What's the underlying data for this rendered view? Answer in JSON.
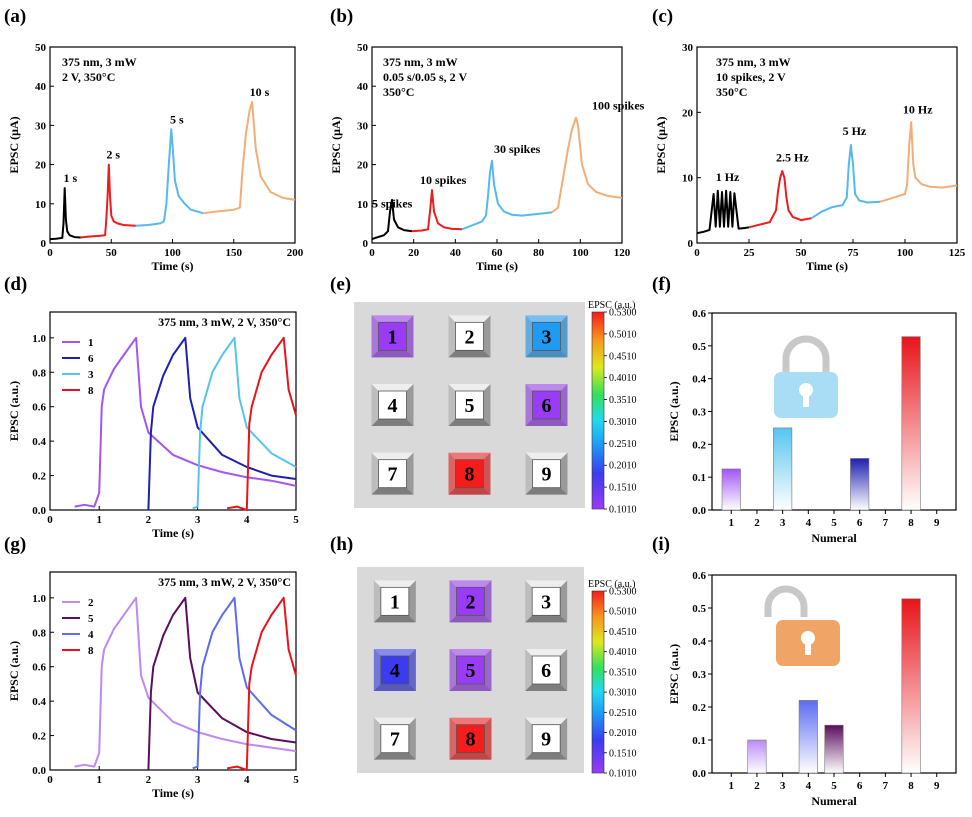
{
  "panel_labels": [
    "(a)",
    "(b)",
    "(c)",
    "(d)",
    "(e)",
    "(f)",
    "(g)",
    "(h)",
    "(i)"
  ],
  "colors": {
    "black": "#000000",
    "red": "#ee1c1c",
    "blue": "#57b8ec",
    "orange": "#f2ae77",
    "purple": "#a255f5",
    "navy": "#1f1fb0",
    "sky": "#55c5f0",
    "crimson": "#e8141a",
    "lavender": "#bb8af5",
    "plum": "#5a0e5c",
    "periwinkle": "#5d6cf0",
    "lock_blue": "#a9dcf5",
    "lock_gray": "#c8c8c8",
    "lock_orange": "#f0a466"
  },
  "chart_data": [
    {
      "id": "a",
      "type": "line",
      "annotation": [
        "375 nm, 3 mW",
        "2 V, 350°C"
      ],
      "xlabel": "Time (s)",
      "ylabel": "EPSC (μA)",
      "xlim": [
        0,
        200
      ],
      "ylim": [
        0,
        50
      ],
      "xticks": [
        "0",
        "50",
        "100",
        "150",
        "200"
      ],
      "yticks": [
        "0",
        "10",
        "20",
        "30",
        "40",
        "50"
      ],
      "series": [
        {
          "color": "black",
          "x": [
            0,
            5,
            10,
            11,
            12,
            13,
            14,
            16,
            20,
            25
          ],
          "y": [
            1,
            1.1,
            1.3,
            5,
            14,
            6,
            3,
            2,
            1.5,
            1.4
          ]
        },
        {
          "color": "red",
          "x": [
            25,
            30,
            40,
            45,
            46,
            47,
            48,
            49,
            50,
            52,
            55,
            60,
            70
          ],
          "y": [
            1.4,
            1.6,
            1.8,
            2,
            6,
            12,
            20,
            12,
            7,
            5.5,
            5,
            4.6,
            4.4
          ]
        },
        {
          "color": "blue",
          "x": [
            70,
            80,
            90,
            93,
            95,
            97,
            99,
            100,
            102,
            105,
            110,
            115,
            125
          ],
          "y": [
            4.4,
            4.6,
            5,
            5.5,
            10,
            20,
            29,
            25,
            16,
            12,
            10,
            8.5,
            7.6
          ]
        },
        {
          "color": "orange",
          "x": [
            125,
            135,
            150,
            155,
            157,
            160,
            163,
            165,
            168,
            172,
            180,
            190,
            200
          ],
          "y": [
            7.6,
            8,
            8.5,
            9,
            18,
            28,
            34,
            36,
            24,
            17,
            13,
            11.5,
            11
          ]
        }
      ],
      "labels": [
        {
          "text": "1 s",
          "x": 11,
          "y": 15.5
        },
        {
          "text": "2 s",
          "x": 46,
          "y": 21.5
        },
        {
          "text": "5 s",
          "x": 98,
          "y": 30.5
        },
        {
          "text": "10 s",
          "x": 163,
          "y": 37.5
        }
      ]
    },
    {
      "id": "b",
      "type": "line",
      "annotation": [
        "375 nm, 3 mW",
        "0.05 s/0.05 s, 2 V",
        "350°C"
      ],
      "xlabel": "Time (s)",
      "ylabel": "EPSC (μA)",
      "xlim": [
        0,
        125
      ],
      "ylim": [
        0,
        50
      ],
      "xticks": [
        "0",
        "20",
        "40",
        "60",
        "80",
        "100",
        "120"
      ],
      "yticks": [
        "0",
        "10",
        "20",
        "30",
        "40",
        "50"
      ],
      "series": [
        {
          "color": "black",
          "x": [
            0,
            3,
            6,
            8,
            9,
            10,
            11,
            13,
            16,
            20
          ],
          "y": [
            1,
            1.5,
            2,
            3,
            8,
            11,
            6,
            4,
            3.3,
            3
          ]
        },
        {
          "color": "red",
          "x": [
            20,
            25,
            28,
            29,
            30,
            31,
            33,
            36,
            40,
            45
          ],
          "y": [
            3,
            3.2,
            3.5,
            8,
            13.5,
            8,
            5,
            4,
            3.6,
            3.5
          ]
        },
        {
          "color": "blue",
          "x": [
            45,
            50,
            55,
            57,
            58,
            59,
            60,
            61,
            63,
            66,
            70,
            75,
            90
          ],
          "y": [
            3.5,
            4.5,
            5.5,
            7,
            12,
            18,
            21,
            15,
            10,
            8,
            7.2,
            7,
            7.8
          ]
        },
        {
          "color": "orange",
          "x": [
            90,
            93,
            96,
            98,
            100,
            102,
            103,
            105,
            108,
            112,
            118,
            125
          ],
          "y": [
            7.8,
            9,
            18,
            24,
            29,
            32,
            30,
            20,
            15,
            13,
            12,
            11.5
          ]
        }
      ],
      "labels": [
        {
          "text": "5 spikes",
          "x": 0,
          "y": 9
        },
        {
          "text": "10 spikes",
          "x": 24,
          "y": 15
        },
        {
          "text": "30 spikes",
          "x": 61,
          "y": 23
        },
        {
          "text": "100 spikes",
          "x": 110,
          "y": 34
        }
      ]
    },
    {
      "id": "c",
      "type": "line",
      "annotation": [
        "375 nm, 3 mW",
        "10 spikes, 2 V",
        "350°C"
      ],
      "xlabel": "Time (s)",
      "ylabel": "EPSC (μA)",
      "xlim": [
        0,
        125
      ],
      "ylim": [
        0,
        30
      ],
      "xticks": [
        "0",
        "25",
        "50",
        "75",
        "100",
        "125"
      ],
      "yticks": [
        "0",
        "10",
        "20",
        "30"
      ],
      "series": [
        {
          "color": "black",
          "x": [
            0,
            3,
            6,
            8,
            9,
            10,
            11,
            12,
            13,
            14,
            15,
            16,
            17,
            18,
            20,
            23,
            25
          ],
          "y": [
            1.5,
            1.7,
            2,
            7.5,
            2.5,
            8,
            2.5,
            7.8,
            2.5,
            8,
            2.5,
            7.8,
            2.5,
            7.6,
            2.2,
            2.3,
            2.4
          ]
        },
        {
          "color": "red",
          "x": [
            25,
            30,
            35,
            38,
            39,
            40,
            41,
            42,
            43,
            44,
            46,
            50,
            55
          ],
          "y": [
            2.4,
            2.8,
            3.2,
            5,
            8,
            10,
            11,
            10,
            7,
            5,
            4,
            3.5,
            3.8
          ]
        },
        {
          "color": "blue",
          "x": [
            55,
            60,
            65,
            70,
            72,
            73,
            74,
            75,
            76,
            78,
            82,
            88
          ],
          "y": [
            3.8,
            4.8,
            5.5,
            5.8,
            7,
            12,
            15,
            12,
            7.5,
            6.5,
            6.2,
            6.3
          ]
        },
        {
          "color": "orange",
          "x": [
            88,
            95,
            100,
            101,
            102,
            103,
            104,
            105,
            108,
            112,
            118,
            125
          ],
          "y": [
            6.3,
            7,
            7.5,
            9,
            15,
            18.5,
            12,
            10,
            9,
            8.6,
            8.5,
            8.8
          ]
        }
      ],
      "labels": [
        {
          "text": "1 Hz",
          "x": 9,
          "y": 9.5
        },
        {
          "text": "2.5 Hz",
          "x": 38,
          "y": 12.5
        },
        {
          "text": "5 Hz",
          "x": 70,
          "y": 16.5
        },
        {
          "text": "10 Hz",
          "x": 99,
          "y": 19.8
        }
      ]
    },
    {
      "id": "d",
      "type": "line",
      "annotation": [
        "375 nm, 3 mW, 2 V, 350°C"
      ],
      "xlabel": "Time (s)",
      "ylabel": "EPSC (a.u.)",
      "xlim": [
        0,
        5
      ],
      "ylim": [
        0,
        1.15
      ],
      "xticks": [
        "0",
        "1",
        "2",
        "3",
        "4",
        "5"
      ],
      "yticks": [
        "0.0",
        "0.2",
        "0.4",
        "0.6",
        "0.8",
        "1.0"
      ],
      "legend": [
        {
          "name": "1",
          "color": "purple"
        },
        {
          "name": "6",
          "color": "navy"
        },
        {
          "name": "3",
          "color": "sky"
        },
        {
          "name": "8",
          "color": "crimson"
        }
      ],
      "series": [
        {
          "color": "purple",
          "x": [
            0.5,
            0.7,
            0.9,
            1.0,
            1.05,
            1.1,
            1.3,
            1.5,
            1.7,
            1.75,
            1.85,
            2,
            2.5,
            3,
            3.5,
            4,
            4.5,
            5
          ],
          "y": [
            0.02,
            0.03,
            0.02,
            0.1,
            0.6,
            0.7,
            0.82,
            0.9,
            0.98,
            1.0,
            0.6,
            0.45,
            0.32,
            0.26,
            0.22,
            0.19,
            0.17,
            0.14
          ]
        },
        {
          "color": "navy",
          "x": [
            2.0,
            2.05,
            2.1,
            2.3,
            2.5,
            2.7,
            2.75,
            2.85,
            3,
            3.5,
            4,
            4.5,
            5
          ],
          "y": [
            0.0,
            0.45,
            0.6,
            0.78,
            0.9,
            0.98,
            1.0,
            0.65,
            0.48,
            0.32,
            0.25,
            0.2,
            0.18
          ]
        },
        {
          "color": "sky",
          "x": [
            2.9,
            3.0,
            3.05,
            3.1,
            3.3,
            3.5,
            3.7,
            3.75,
            3.85,
            4,
            4.5,
            5
          ],
          "y": [
            0.01,
            0.02,
            0.45,
            0.6,
            0.8,
            0.9,
            0.98,
            1.0,
            0.65,
            0.48,
            0.33,
            0.25
          ]
        },
        {
          "color": "crimson",
          "x": [
            3.6,
            3.8,
            4.0,
            4.05,
            4.1,
            4.3,
            4.5,
            4.7,
            4.75,
            4.85,
            5
          ],
          "y": [
            0.01,
            0.02,
            0.0,
            0.5,
            0.6,
            0.8,
            0.9,
            0.98,
            1.0,
            0.7,
            0.55
          ]
        }
      ]
    },
    {
      "id": "g",
      "type": "line",
      "annotation": [
        "375 nm, 3 mW, 2 V, 350°C"
      ],
      "xlabel": "Time (s)",
      "ylabel": "EPSC (a.u.)",
      "xlim": [
        0,
        5
      ],
      "ylim": [
        0,
        1.15
      ],
      "xticks": [
        "0",
        "1",
        "2",
        "3",
        "4",
        "5"
      ],
      "yticks": [
        "0.0",
        "0.2",
        "0.4",
        "0.6",
        "0.8",
        "1.0"
      ],
      "legend": [
        {
          "name": "2",
          "color": "lavender"
        },
        {
          "name": "5",
          "color": "plum"
        },
        {
          "name": "4",
          "color": "periwinkle"
        },
        {
          "name": "8",
          "color": "crimson"
        }
      ],
      "series": [
        {
          "color": "lavender",
          "x": [
            0.5,
            0.7,
            0.9,
            1.0,
            1.05,
            1.1,
            1.3,
            1.5,
            1.7,
            1.75,
            1.85,
            2,
            2.5,
            3,
            3.5,
            4,
            4.5,
            5
          ],
          "y": [
            0.02,
            0.03,
            0.02,
            0.1,
            0.6,
            0.7,
            0.82,
            0.9,
            0.98,
            1.0,
            0.55,
            0.42,
            0.28,
            0.22,
            0.18,
            0.15,
            0.13,
            0.11
          ]
        },
        {
          "color": "plum",
          "x": [
            2.0,
            2.05,
            2.1,
            2.3,
            2.5,
            2.7,
            2.75,
            2.85,
            3,
            3.5,
            4,
            4.5,
            5
          ],
          "y": [
            0.0,
            0.45,
            0.6,
            0.78,
            0.9,
            0.98,
            1.0,
            0.65,
            0.45,
            0.3,
            0.22,
            0.18,
            0.16
          ]
        },
        {
          "color": "periwinkle",
          "x": [
            2.9,
            3.0,
            3.05,
            3.1,
            3.3,
            3.5,
            3.7,
            3.75,
            3.85,
            4,
            4.5,
            5
          ],
          "y": [
            0.01,
            0.02,
            0.45,
            0.6,
            0.8,
            0.9,
            0.98,
            1.0,
            0.65,
            0.48,
            0.32,
            0.23
          ]
        },
        {
          "color": "crimson",
          "x": [
            3.6,
            3.8,
            4.0,
            4.05,
            4.1,
            4.3,
            4.5,
            4.7,
            4.75,
            4.85,
            5
          ],
          "y": [
            0.01,
            0.02,
            0.0,
            0.5,
            0.6,
            0.8,
            0.9,
            0.98,
            1.0,
            0.7,
            0.55
          ]
        }
      ]
    },
    {
      "id": "e",
      "type": "heatmap",
      "cells": [
        {
          "label": "1",
          "value": 0.13
        },
        {
          "label": "2",
          "value": null
        },
        {
          "label": "3",
          "value": 0.25
        },
        {
          "label": "4",
          "value": null
        },
        {
          "label": "5",
          "value": null
        },
        {
          "label": "6",
          "value": 0.16
        },
        {
          "label": "7",
          "value": null
        },
        {
          "label": "8",
          "value": 0.53
        },
        {
          "label": "9",
          "value": null
        }
      ],
      "colorbar": {
        "title": "EPSC (a.u.)",
        "ticks": [
          "0.5300",
          "0.5010",
          "0.4510",
          "0.4010",
          "0.3510",
          "0.3010",
          "0.2510",
          "0.2010",
          "0.1510",
          "0.1010"
        ]
      }
    },
    {
      "id": "h",
      "type": "heatmap",
      "cells": [
        {
          "label": "1",
          "value": null
        },
        {
          "label": "2",
          "value": 0.1
        },
        {
          "label": "3",
          "value": null
        },
        {
          "label": "4",
          "value": 0.22
        },
        {
          "label": "5",
          "value": 0.15
        },
        {
          "label": "6",
          "value": null
        },
        {
          "label": "7",
          "value": null
        },
        {
          "label": "8",
          "value": 0.53
        },
        {
          "label": "9",
          "value": null
        }
      ],
      "colorbar": {
        "title": "EPSC (a.u.)",
        "ticks": [
          "0.5300",
          "0.5010",
          "0.4510",
          "0.4010",
          "0.3510",
          "0.3010",
          "0.2510",
          "0.2010",
          "0.1510",
          "0.1010"
        ]
      }
    },
    {
      "id": "f",
      "type": "bar",
      "xlabel": "Numeral",
      "ylabel": "EPSC (a.u.)",
      "ylim": [
        0,
        0.6
      ],
      "yticks": [
        "0.0",
        "0.1",
        "0.2",
        "0.3",
        "0.4",
        "0.5",
        "0.6"
      ],
      "categories": [
        "1",
        "2",
        "3",
        "4",
        "5",
        "6",
        "7",
        "8",
        "9"
      ],
      "values": [
        0.125,
        0,
        0.25,
        0,
        0,
        0.157,
        0,
        0.528,
        0
      ],
      "bar_colors": [
        "purple",
        "",
        "sky",
        "",
        "",
        "navy",
        "",
        "crimson",
        ""
      ],
      "lock": "locked"
    },
    {
      "id": "i",
      "type": "bar",
      "xlabel": "Numeral",
      "ylabel": "EPSC (a.u.)",
      "ylim": [
        0,
        0.6
      ],
      "yticks": [
        "0.0",
        "0.1",
        "0.2",
        "0.3",
        "0.4",
        "0.5",
        "0.6"
      ],
      "categories": [
        "1",
        "2",
        "3",
        "4",
        "5",
        "6",
        "7",
        "8",
        "9"
      ],
      "values": [
        0,
        0.1,
        0,
        0.22,
        0.145,
        0,
        0,
        0.528,
        0
      ],
      "bar_colors": [
        "",
        "lavender",
        "",
        "periwinkle",
        "plum",
        "",
        "",
        "crimson",
        ""
      ],
      "lock": "unlocked"
    }
  ]
}
